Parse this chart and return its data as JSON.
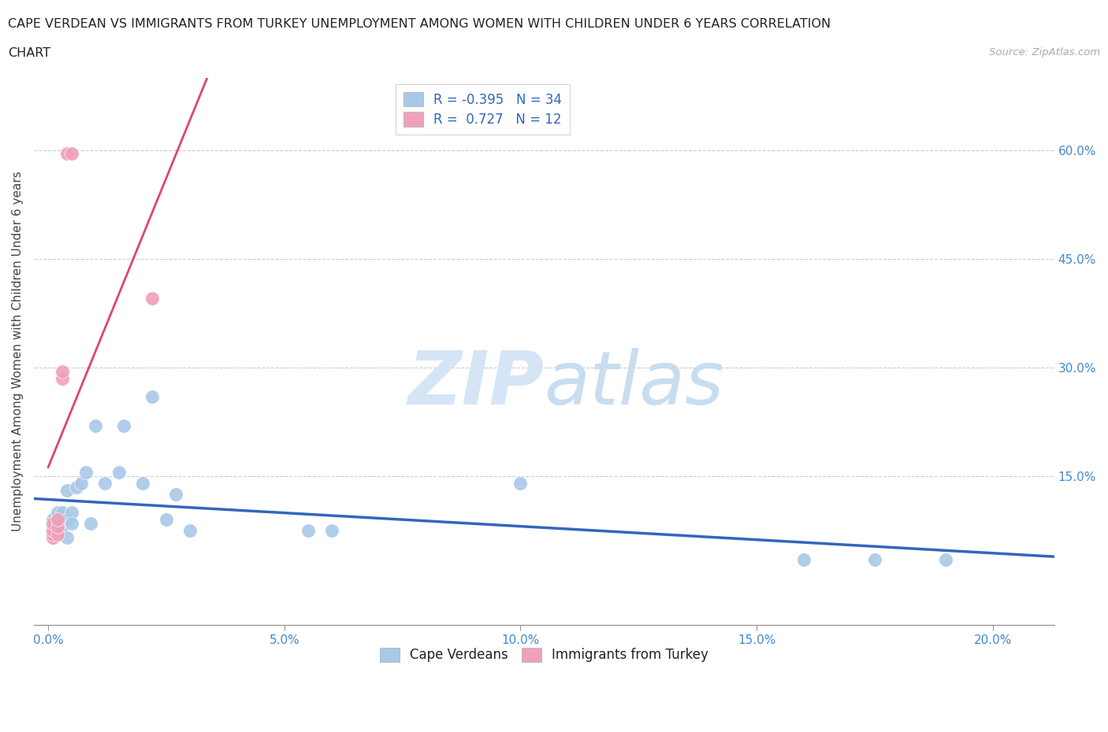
{
  "title_line1": "CAPE VERDEAN VS IMMIGRANTS FROM TURKEY UNEMPLOYMENT AMONG WOMEN WITH CHILDREN UNDER 6 YEARS CORRELATION",
  "title_line2": "CHART",
  "source": "Source: ZipAtlas.com",
  "ylabel": "Unemployment Among Women with Children Under 6 years",
  "x_tick_labels": [
    "0.0%",
    "5.0%",
    "10.0%",
    "15.0%",
    "20.0%"
  ],
  "x_ticks": [
    0.0,
    0.05,
    0.1,
    0.15,
    0.2
  ],
  "y_ticks": [
    0.0,
    0.15,
    0.3,
    0.45,
    0.6
  ],
  "y_tick_labels_right": [
    "",
    "15.0%",
    "30.0%",
    "45.0%",
    "60.0%"
  ],
  "xlim": [
    -0.003,
    0.213
  ],
  "ylim": [
    -0.055,
    0.7
  ],
  "blue_R": -0.395,
  "blue_N": 34,
  "pink_R": 0.727,
  "pink_N": 12,
  "blue_color": "#a8c8e8",
  "blue_line_color": "#3366bb",
  "pink_color": "#f0a0b8",
  "pink_line_color": "#dd4477",
  "legend_label_blue": "Cape Verdeans",
  "legend_label_pink": "Immigrants from Turkey",
  "watermark_zip": "ZIP",
  "watermark_atlas": "atlas",
  "watermark_color": "#d5e5f5",
  "blue_x": [
    0.001,
    0.001,
    0.001,
    0.001,
    0.002,
    0.002,
    0.002,
    0.003,
    0.003,
    0.003,
    0.004,
    0.004,
    0.004,
    0.005,
    0.005,
    0.006,
    0.007,
    0.008,
    0.009,
    0.01,
    0.012,
    0.015,
    0.016,
    0.02,
    0.022,
    0.025,
    0.027,
    0.03,
    0.055,
    0.06,
    0.1,
    0.16,
    0.175,
    0.19
  ],
  "blue_y": [
    0.065,
    0.075,
    0.08,
    0.09,
    0.075,
    0.085,
    0.1,
    0.08,
    0.09,
    0.1,
    0.065,
    0.09,
    0.13,
    0.1,
    0.085,
    0.135,
    0.14,
    0.155,
    0.085,
    0.22,
    0.14,
    0.155,
    0.22,
    0.14,
    0.26,
    0.09,
    0.125,
    0.075,
    0.075,
    0.075,
    0.14,
    0.035,
    0.035,
    0.035
  ],
  "pink_x": [
    0.001,
    0.001,
    0.001,
    0.001,
    0.002,
    0.002,
    0.002,
    0.003,
    0.003,
    0.004,
    0.005,
    0.022
  ],
  "pink_y": [
    0.065,
    0.07,
    0.075,
    0.085,
    0.07,
    0.08,
    0.09,
    0.285,
    0.295,
    0.595,
    0.595,
    0.395
  ],
  "pink_line_x_start": 0.0,
  "pink_line_x_end": 0.04,
  "blue_line_x_start": -0.003,
  "blue_line_x_end": 0.213
}
